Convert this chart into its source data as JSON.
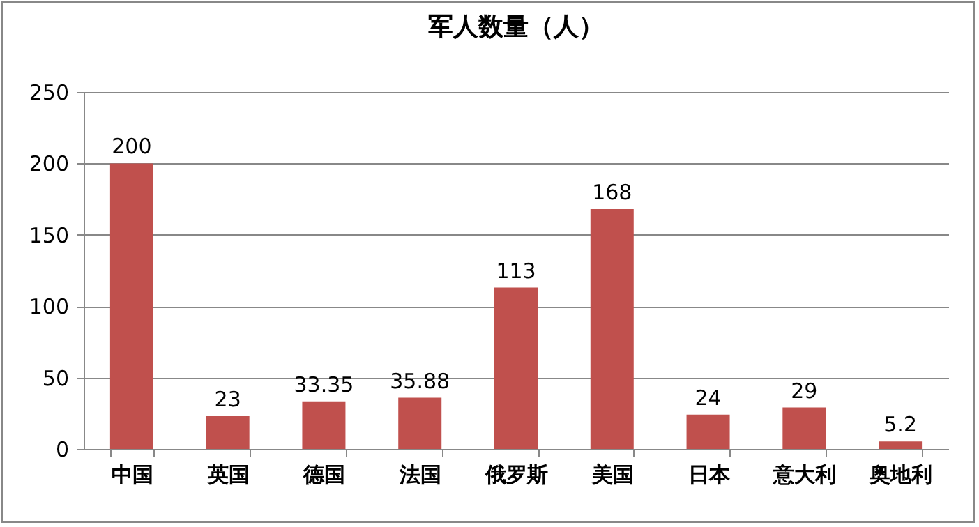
{
  "chart_data": {
    "type": "bar",
    "title": "军人数量（人）",
    "categories": [
      "中国",
      "英国",
      "德国",
      "法国",
      "俄罗斯",
      "美国",
      "日本",
      "意大利",
      "奥地利"
    ],
    "values": [
      200,
      23,
      33.35,
      35.88,
      113,
      168,
      24,
      29,
      5.2
    ],
    "color": "#c0504d",
    "ylim": [
      0,
      250
    ],
    "yticks": [
      0,
      50,
      100,
      150,
      200,
      250
    ],
    "grid": "y",
    "data_labels": true
  }
}
